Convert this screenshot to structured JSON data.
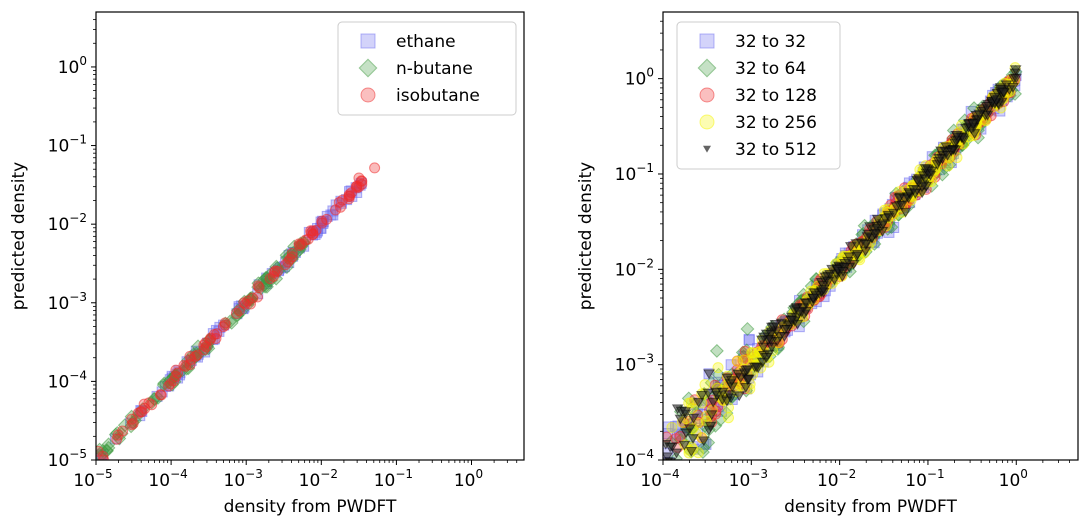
{
  "chart_data": [
    {
      "type": "scatter",
      "xlabel": "density from PWDFT",
      "ylabel": "predicted density",
      "xscale": "log",
      "yscale": "log",
      "xlim": [
        1e-05,
        5
      ],
      "ylim": [
        1e-05,
        5
      ],
      "xticks": [
        {
          "value": 1e-05,
          "base": "10",
          "exp": "−5"
        },
        {
          "value": 0.0001,
          "base": "10",
          "exp": "−4"
        },
        {
          "value": 0.001,
          "base": "10",
          "exp": "−3"
        },
        {
          "value": 0.01,
          "base": "10",
          "exp": "−2"
        },
        {
          "value": 0.1,
          "base": "10",
          "exp": "−1"
        },
        {
          "value": 1,
          "base": "10",
          "exp": "0"
        }
      ],
      "yticks": [
        {
          "value": 1e-05,
          "base": "10",
          "exp": "−5"
        },
        {
          "value": 0.0001,
          "base": "10",
          "exp": "−4"
        },
        {
          "value": 0.001,
          "base": "10",
          "exp": "−3"
        },
        {
          "value": 0.01,
          "base": "10",
          "exp": "−2"
        },
        {
          "value": 0.1,
          "base": "10",
          "exp": "−1"
        },
        {
          "value": 1,
          "base": "10",
          "exp": "0"
        }
      ],
      "grid": false,
      "legend": "top-right",
      "series": [
        {
          "name": "ethane",
          "marker": "square",
          "color": "#6e6ef0",
          "xmax": 0.035,
          "scatter": 0.03
        },
        {
          "name": "n-butane",
          "marker": "diamond",
          "color": "#3f9a3f",
          "xmax": 0.006,
          "scatter": 0.04
        },
        {
          "name": "isobutane",
          "marker": "circle",
          "color": "#ee2b2b",
          "xmax": 0.055,
          "scatter": 0.03
        }
      ]
    },
    {
      "type": "scatter",
      "xlabel": "density from PWDFT",
      "ylabel": "predicted density",
      "xscale": "log",
      "yscale": "log",
      "xlim": [
        0.0001,
        5
      ],
      "ylim": [
        0.0001,
        5
      ],
      "xticks": [
        {
          "value": 0.0001,
          "base": "10",
          "exp": "−4"
        },
        {
          "value": 0.001,
          "base": "10",
          "exp": "−3"
        },
        {
          "value": 0.01,
          "base": "10",
          "exp": "−2"
        },
        {
          "value": 0.1,
          "base": "10",
          "exp": "−1"
        },
        {
          "value": 1,
          "base": "10",
          "exp": "0"
        }
      ],
      "yticks": [
        {
          "value": 0.0001,
          "base": "10",
          "exp": "−4"
        },
        {
          "value": 0.001,
          "base": "10",
          "exp": "−3"
        },
        {
          "value": 0.01,
          "base": "10",
          "exp": "−2"
        },
        {
          "value": 0.1,
          "base": "10",
          "exp": "−1"
        },
        {
          "value": 1,
          "base": "10",
          "exp": "0"
        }
      ],
      "grid": false,
      "legend": "top-left",
      "series": [
        {
          "name": "32 to 32",
          "marker": "square",
          "color": "#6e6ef0",
          "xmax": 1.0,
          "scatter": 0.06
        },
        {
          "name": "32 to 64",
          "marker": "diamond",
          "color": "#3f9a3f",
          "xmax": 1.0,
          "scatter": 0.07
        },
        {
          "name": "32 to 128",
          "marker": "circle",
          "color": "#ee2b2b",
          "xmax": 1.0,
          "scatter": 0.05
        },
        {
          "name": "32 to 256",
          "marker": "circle",
          "color": "#f5f500",
          "xmax": 1.0,
          "scatter": 0.06
        },
        {
          "name": "32 to 512",
          "marker": "triangle-down",
          "color": "#222222",
          "xmax": 1.0,
          "scatter": 0.05
        }
      ]
    }
  ]
}
